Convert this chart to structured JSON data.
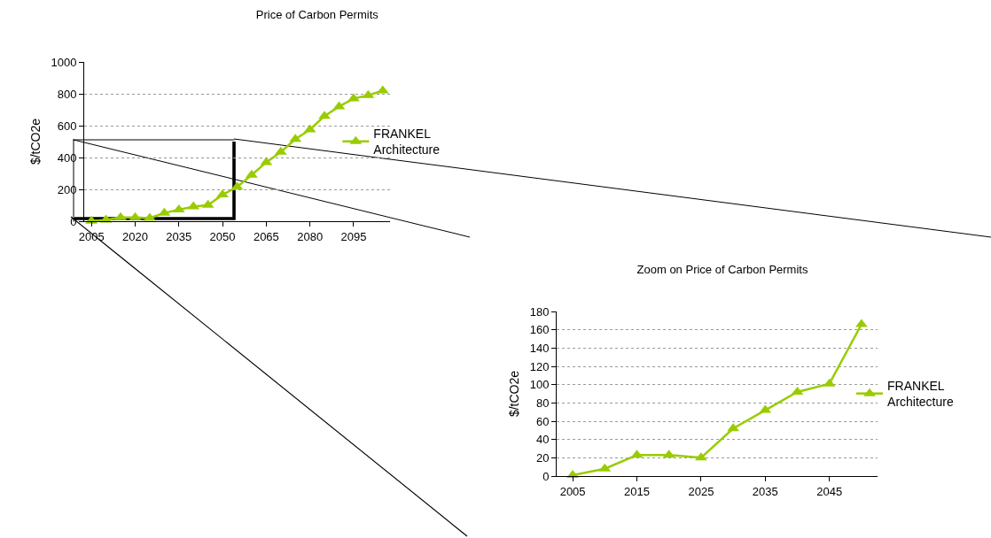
{
  "chart_data": [
    {
      "type": "line",
      "title": "Price of Carbon Permits",
      "ylabel": "$/tCO2e",
      "categories": [
        "2005",
        null,
        null,
        "2020",
        null,
        null,
        "2035",
        null,
        null,
        "2050",
        null,
        null,
        "2065",
        null,
        null,
        "2080",
        null,
        null,
        "2095",
        null,
        null
      ],
      "series": [
        {
          "name": "FRANKEL Architecture",
          "color": "#99cc00",
          "values": [
            1,
            8,
            23,
            23,
            20,
            52,
            72,
            92,
            101,
            166,
            215,
            290,
            370,
            435,
            515,
            575,
            660,
            720,
            770,
            790,
            820
          ]
        }
      ],
      "ylim": [
        0,
        1000
      ],
      "yticks": [
        0,
        200,
        400,
        600,
        800,
        1000
      ],
      "grid": "y",
      "legend": "right",
      "marker": "triangle",
      "line_style": "solid"
    },
    {
      "type": "line",
      "title": "Zoom on Price of Carbon Permits",
      "ylabel": "$/tCO2e",
      "categories": [
        "2005",
        null,
        "2015",
        null,
        "2025",
        null,
        "2035",
        null,
        "2045",
        null
      ],
      "series": [
        {
          "name": "FRANKEL Architecture",
          "color": "#99cc00",
          "values": [
            1,
            8,
            23,
            23,
            20,
            52,
            72,
            92,
            101,
            166
          ]
        }
      ],
      "ylim": [
        0,
        180
      ],
      "yticks": [
        0,
        20,
        40,
        60,
        80,
        100,
        120,
        140,
        160,
        180
      ],
      "grid": "y",
      "legend": "right",
      "marker": "triangle",
      "line_style": "solid"
    }
  ]
}
